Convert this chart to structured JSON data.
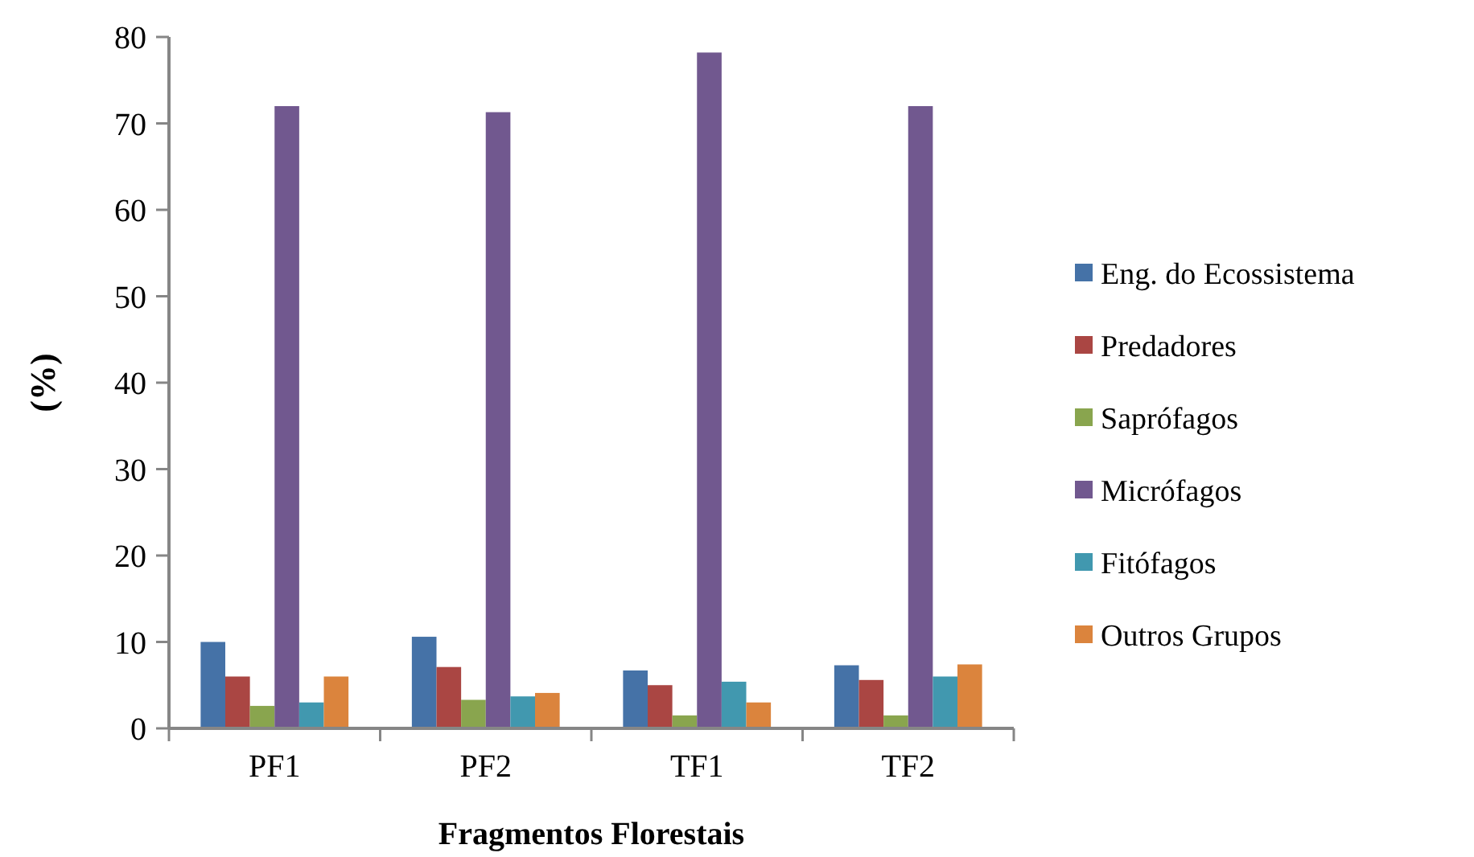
{
  "chart_data": {
    "type": "bar",
    "xlabel": "Fragmentos Florestais",
    "ylabel": "(%)",
    "categories": [
      "PF1",
      "PF2",
      "TF1",
      "TF2"
    ],
    "series": [
      {
        "name": "Eng. do Ecossistema",
        "color": "#4572a7",
        "values": [
          10,
          10.6,
          6.7,
          7.3
        ]
      },
      {
        "name": "Predadores",
        "color": "#aa4643",
        "values": [
          6,
          7.1,
          5,
          5.6
        ]
      },
      {
        "name": "Saprófagos",
        "color": "#89a54e",
        "values": [
          2.6,
          3.3,
          1.5,
          1.5
        ]
      },
      {
        "name": "Micrófagos",
        "color": "#71588f",
        "values": [
          72,
          71.3,
          78.2,
          72
        ]
      },
      {
        "name": "Fitófagos",
        "color": "#4198af",
        "values": [
          3,
          3.7,
          5.4,
          6
        ]
      },
      {
        "name": "Outros Grupos",
        "color": "#db843d",
        "values": [
          6,
          4.1,
          3,
          7.4
        ]
      }
    ],
    "ylim": [
      0,
      80
    ],
    "yticks": [
      0,
      10,
      20,
      30,
      40,
      50,
      60,
      70,
      80
    ],
    "grid": false,
    "legend": "right"
  }
}
